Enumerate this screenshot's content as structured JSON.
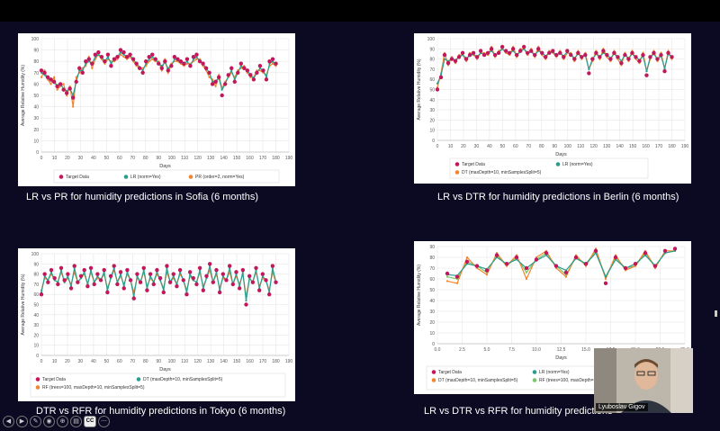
{
  "captions": {
    "c1": "LR vs PR for humidity predictions in Sofia (6 months)",
    "c2": "LR vs DTR for humidity predictions in Berlin (6 months)",
    "c3": "DTR vs RFR for humidity predictions in Tokyo (6 months)",
    "c4": "LR vs DTR vs RFR for humidity predictions"
  },
  "video": {
    "name": "Lyuboslav Gigov"
  },
  "toolbar": {
    "cc_label": "CC"
  },
  "colors": {
    "target": "#c2185b",
    "lr": "#2a9d8f",
    "pr": "#f2842e",
    "dt": "#f2842e",
    "rf": "#f2842e",
    "rf4": "#7cc46a"
  },
  "chart_data": [
    {
      "type": "line",
      "xlabel": "Days",
      "ylabel": "Average Relative Humidity (%)",
      "xlim": [
        0,
        190
      ],
      "ylim": [
        0,
        100
      ],
      "xticks": [
        "0",
        "10",
        "20",
        "30",
        "40",
        "50",
        "60",
        "70",
        "80",
        "90",
        "100",
        "110",
        "120",
        "130",
        "140",
        "150",
        "160",
        "170",
        "180",
        "190"
      ],
      "yticks": [
        "0",
        "10",
        "20",
        "30",
        "40",
        "50",
        "60",
        "70",
        "80",
        "90",
        "100"
      ],
      "legend": [
        "Target Data",
        "LR (norm=Yes)",
        "PR (order=2, norm=Yes)"
      ],
      "series": [
        {
          "name": "Target Data",
          "values": [
            72,
            70,
            66,
            64,
            62,
            58,
            60,
            55,
            52,
            56,
            48,
            62,
            74,
            70,
            80,
            82,
            78,
            86,
            88,
            84,
            80,
            86,
            76,
            82,
            84,
            90,
            88,
            84,
            86,
            82,
            78,
            74,
            70,
            80,
            84,
            86,
            82,
            78,
            74,
            80,
            72,
            76,
            84,
            82,
            80,
            78,
            82,
            76,
            84,
            86,
            80,
            78,
            74,
            70,
            60,
            62,
            66,
            50,
            60,
            68,
            74,
            62,
            70,
            78,
            74,
            72,
            68,
            64,
            70,
            76,
            72,
            64,
            80,
            82,
            78
          ]
        },
        {
          "name": "LR (norm=Yes)",
          "values": [
            70,
            68,
            65,
            63,
            61,
            59,
            60,
            56,
            54,
            56,
            50,
            62,
            72,
            72,
            78,
            80,
            78,
            84,
            86,
            84,
            80,
            84,
            78,
            82,
            84,
            88,
            86,
            84,
            85,
            82,
            78,
            75,
            72,
            78,
            82,
            84,
            82,
            78,
            76,
            79,
            74,
            76,
            82,
            81,
            79,
            78,
            80,
            76,
            82,
            84,
            80,
            78,
            74,
            70,
            62,
            63,
            65,
            55,
            60,
            67,
            72,
            64,
            70,
            76,
            74,
            72,
            68,
            65,
            70,
            74,
            72,
            66,
            78,
            80,
            77
          ]
        },
        {
          "name": "PR (order=2, norm=Yes)",
          "values": [
            66,
            72,
            64,
            60,
            66,
            55,
            58,
            60,
            50,
            58,
            40,
            66,
            70,
            74,
            76,
            84,
            74,
            82,
            86,
            82,
            78,
            82,
            80,
            80,
            82,
            86,
            84,
            82,
            84,
            80,
            76,
            74,
            74,
            76,
            80,
            82,
            80,
            80,
            72,
            82,
            70,
            78,
            80,
            80,
            78,
            76,
            78,
            78,
            80,
            82,
            82,
            76,
            72,
            66,
            64,
            58,
            68,
            56,
            62,
            66,
            70,
            66,
            72,
            74,
            76,
            70,
            66,
            66,
            72,
            72,
            70,
            68,
            76,
            78,
            76
          ]
        }
      ]
    },
    {
      "type": "line",
      "xlabel": "Days",
      "ylabel": "Average Relative Humidity (%)",
      "xlim": [
        0,
        190
      ],
      "ylim": [
        0,
        100
      ],
      "xticks": [
        "0",
        "10",
        "20",
        "30",
        "40",
        "50",
        "60",
        "70",
        "80",
        "90",
        "100",
        "110",
        "120",
        "130",
        "140",
        "150",
        "160",
        "170",
        "180",
        "190"
      ],
      "yticks": [
        "0",
        "10",
        "20",
        "30",
        "40",
        "50",
        "60",
        "70",
        "80",
        "90",
        "100"
      ],
      "legend": [
        "Target Data",
        "LR (norm=Yes)",
        "DT (maxDepth=10, minSamplesSplit=5)"
      ],
      "series": [
        {
          "name": "Target Data",
          "values": [
            50,
            62,
            84,
            76,
            80,
            78,
            82,
            86,
            80,
            84,
            86,
            82,
            88,
            84,
            86,
            90,
            84,
            86,
            92,
            88,
            86,
            90,
            84,
            88,
            92,
            86,
            88,
            84,
            90,
            86,
            82,
            86,
            88,
            84,
            86,
            82,
            88,
            84,
            80,
            86,
            82,
            84,
            66,
            80,
            86,
            82,
            88,
            84,
            80,
            86,
            82,
            76,
            84,
            80,
            86,
            82,
            78,
            84,
            64,
            82,
            86,
            80,
            84,
            68,
            86,
            82
          ]
        },
        {
          "name": "LR (norm=Yes)",
          "values": [
            56,
            64,
            80,
            78,
            80,
            79,
            82,
            84,
            81,
            83,
            85,
            82,
            86,
            84,
            86,
            88,
            84,
            86,
            90,
            87,
            86,
            88,
            84,
            87,
            90,
            86,
            87,
            84,
            88,
            86,
            83,
            86,
            87,
            84,
            86,
            83,
            87,
            84,
            81,
            85,
            82,
            84,
            70,
            80,
            85,
            82,
            86,
            84,
            81,
            85,
            82,
            78,
            84,
            81,
            85,
            82,
            79,
            83,
            68,
            82,
            85,
            80,
            83,
            71,
            85,
            82
          ]
        },
        {
          "name": "DT (maxDepth=10, minSamplesSplit=5)",
          "values": [
            52,
            66,
            86,
            74,
            82,
            76,
            84,
            84,
            78,
            86,
            84,
            80,
            86,
            86,
            84,
            92,
            82,
            88,
            90,
            86,
            84,
            92,
            82,
            90,
            90,
            84,
            90,
            82,
            92,
            84,
            80,
            88,
            86,
            82,
            88,
            80,
            86,
            86,
            78,
            88,
            80,
            86,
            70,
            78,
            88,
            80,
            90,
            82,
            78,
            88,
            80,
            74,
            86,
            78,
            88,
            80,
            76,
            86,
            68,
            80,
            88,
            78,
            86,
            70,
            88,
            80
          ]
        }
      ]
    },
    {
      "type": "line",
      "xlabel": "Days",
      "ylabel": "Average Relative Humidity (%)",
      "xlim": [
        0,
        190
      ],
      "ylim": [
        0,
        100
      ],
      "xticks": [
        "0",
        "10",
        "20",
        "30",
        "40",
        "50",
        "60",
        "70",
        "80",
        "90",
        "100",
        "110",
        "120",
        "130",
        "140",
        "150",
        "160",
        "170",
        "180",
        "190"
      ],
      "yticks": [
        "0",
        "10",
        "20",
        "30",
        "40",
        "50",
        "60",
        "70",
        "80",
        "90",
        "100"
      ],
      "legend": [
        "Target Data",
        "DT (maxDepth=10, minSamplesSplit=5)",
        "RF (trees=100, maxDepth=10, minSamplesSplit=5)"
      ],
      "series": [
        {
          "name": "Target Data",
          "values": [
            60,
            80,
            72,
            84,
            76,
            70,
            86,
            74,
            80,
            66,
            88,
            72,
            78,
            84,
            68,
            86,
            70,
            80,
            74,
            84,
            62,
            78,
            88,
            70,
            82,
            66,
            84,
            74,
            56,
            80,
            72,
            86,
            64,
            80,
            70,
            84,
            76,
            62,
            88,
            72,
            80,
            68,
            84,
            74,
            60,
            82,
            76,
            70,
            86,
            64,
            78,
            90,
            72,
            84,
            62,
            80,
            74,
            88,
            70,
            82,
            66,
            84,
            50,
            78,
            72,
            86,
            64,
            80,
            74,
            60,
            88,
            72
          ]
        },
        {
          "name": "DT (maxDepth=10, minSamplesSplit=5)",
          "values": [
            62,
            78,
            74,
            82,
            74,
            72,
            84,
            72,
            78,
            68,
            86,
            72,
            76,
            82,
            70,
            84,
            72,
            78,
            74,
            82,
            64,
            76,
            86,
            72,
            80,
            68,
            82,
            74,
            58,
            78,
            72,
            84,
            66,
            78,
            72,
            82,
            74,
            64,
            86,
            72,
            78,
            70,
            82,
            74,
            62,
            80,
            74,
            72,
            84,
            66,
            76,
            88,
            72,
            82,
            64,
            78,
            74,
            86,
            70,
            80,
            68,
            82,
            54,
            76,
            72,
            84,
            66,
            78,
            74,
            62,
            86,
            72
          ]
        },
        {
          "name": "RF (trees=100, maxDepth=10, minSamplesSplit=5)",
          "values": [
            64,
            76,
            74,
            80,
            74,
            72,
            82,
            72,
            76,
            70,
            82,
            72,
            76,
            80,
            70,
            82,
            72,
            76,
            74,
            80,
            66,
            76,
            84,
            72,
            78,
            70,
            80,
            74,
            62,
            76,
            72,
            82,
            68,
            76,
            72,
            80,
            74,
            66,
            82,
            72,
            76,
            70,
            80,
            74,
            64,
            78,
            74,
            72,
            82,
            68,
            76,
            84,
            72,
            80,
            66,
            76,
            74,
            82,
            70,
            78,
            70,
            80,
            58,
            76,
            72,
            82,
            68,
            76,
            74,
            64,
            82,
            72
          ]
        }
      ]
    },
    {
      "type": "line",
      "xlabel": "Days",
      "ylabel": "Average Relative Humidity (%)",
      "xlim": [
        0,
        25
      ],
      "ylim": [
        0,
        90
      ],
      "xticks": [
        "0.0",
        "2.5",
        "5.0",
        "7.5",
        "10.0",
        "12.5",
        "15.0",
        "17.5",
        "20.0",
        "22.5",
        "25.0"
      ],
      "yticks": [
        "0",
        "10",
        "20",
        "30",
        "40",
        "50",
        "60",
        "70",
        "80",
        "90"
      ],
      "legend": [
        "Target Data",
        "LR (norm=Yes)",
        "DT (maxDepth=10, minSamplesSplit=5)",
        "RF (trees=100, maxDepth=10, minSamplesSplit=5)"
      ],
      "series": [
        {
          "x": [
            1,
            2,
            3,
            4,
            5,
            6,
            7,
            8,
            9,
            10,
            11,
            12,
            13,
            14,
            15,
            16,
            17,
            18,
            19,
            20,
            21,
            22,
            23,
            24
          ],
          "name": "Target Data",
          "values": [
            65,
            62,
            76,
            72,
            68,
            82,
            74,
            80,
            70,
            78,
            84,
            72,
            66,
            80,
            74,
            86,
            56,
            80,
            70,
            74,
            84,
            72,
            86,
            88
          ]
        },
        {
          "x": [
            1,
            2,
            3,
            4,
            5,
            6,
            7,
            8,
            9,
            10,
            11,
            12,
            13,
            14,
            15,
            16,
            17,
            18,
            19,
            20,
            21,
            22,
            23,
            24
          ],
          "name": "LR (norm=Yes)",
          "values": [
            64,
            63,
            74,
            72,
            69,
            80,
            74,
            78,
            70,
            77,
            82,
            72,
            68,
            79,
            74,
            84,
            62,
            78,
            70,
            74,
            82,
            72,
            84,
            86
          ]
        },
        {
          "x": [
            1,
            2,
            3,
            4,
            5,
            6,
            7,
            8,
            9,
            10,
            11,
            12,
            13,
            14,
            15,
            16,
            17,
            18,
            19,
            20,
            21,
            22,
            23,
            24
          ],
          "name": "DT (maxDepth=10, minSamplesSplit=5)",
          "values": [
            58,
            56,
            80,
            70,
            64,
            84,
            72,
            82,
            60,
            80,
            86,
            70,
            62,
            82,
            72,
            88,
            60,
            82,
            68,
            72,
            86,
            70,
            86,
            86
          ]
        },
        {
          "x": [
            1,
            2,
            3,
            4,
            5,
            6,
            7,
            8,
            9,
            10,
            11,
            12,
            13,
            14,
            15,
            16,
            17,
            18,
            19,
            20,
            21,
            22,
            23,
            24
          ],
          "name": "RF (trees=100, maxDepth=10, minSamplesSplit=5)",
          "values": [
            62,
            60,
            76,
            72,
            66,
            82,
            72,
            80,
            66,
            78,
            84,
            72,
            64,
            80,
            74,
            86,
            62,
            80,
            70,
            72,
            84,
            72,
            84,
            86
          ]
        }
      ]
    }
  ]
}
